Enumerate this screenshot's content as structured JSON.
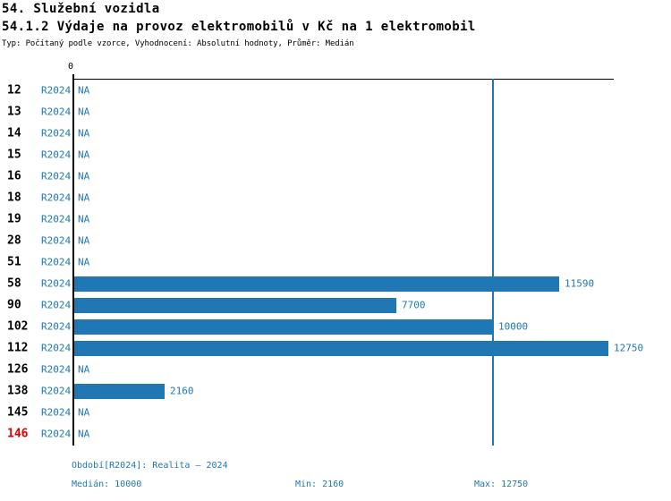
{
  "header": {
    "title1": "54. Služební vozidla",
    "title2": "54.1.2 Výdaje na provoz elektromobilů v Kč na 1 elektromobil",
    "subtitle": "Typ: Počítaný podle vzorce, Vyhodnocení: Absolutní hodnoty, Průměr: Medián"
  },
  "chart_data": {
    "type": "bar",
    "orientation": "horizontal",
    "title": "54.1.2 Výdaje na provoz elektromobilů v Kč na 1 elektromobil",
    "axis_zero_label": "0",
    "period_label": "R2024",
    "na_label": "NA",
    "categories": [
      "12",
      "13",
      "14",
      "15",
      "16",
      "18",
      "19",
      "28",
      "51",
      "58",
      "90",
      "102",
      "112",
      "126",
      "138",
      "145",
      "146"
    ],
    "values": [
      null,
      null,
      null,
      null,
      null,
      null,
      null,
      null,
      null,
      11590,
      7700,
      10000,
      12750,
      null,
      2160,
      null,
      null
    ],
    "highlight_category": "146",
    "median": 10000,
    "min": 2160,
    "max": 12750,
    "xlim": [
      0,
      12900
    ],
    "legend_position": "none",
    "grid": false,
    "colors": {
      "bar": "#2077b4",
      "text_blue": "#1f77b4",
      "highlight_red": "#dd0000",
      "axis": "#000000"
    }
  },
  "footer": {
    "period": "Období[R2024]: Realita – 2024",
    "median": "Medián: 10000",
    "min": "Min: 2160",
    "max": "Max: 12750"
  }
}
